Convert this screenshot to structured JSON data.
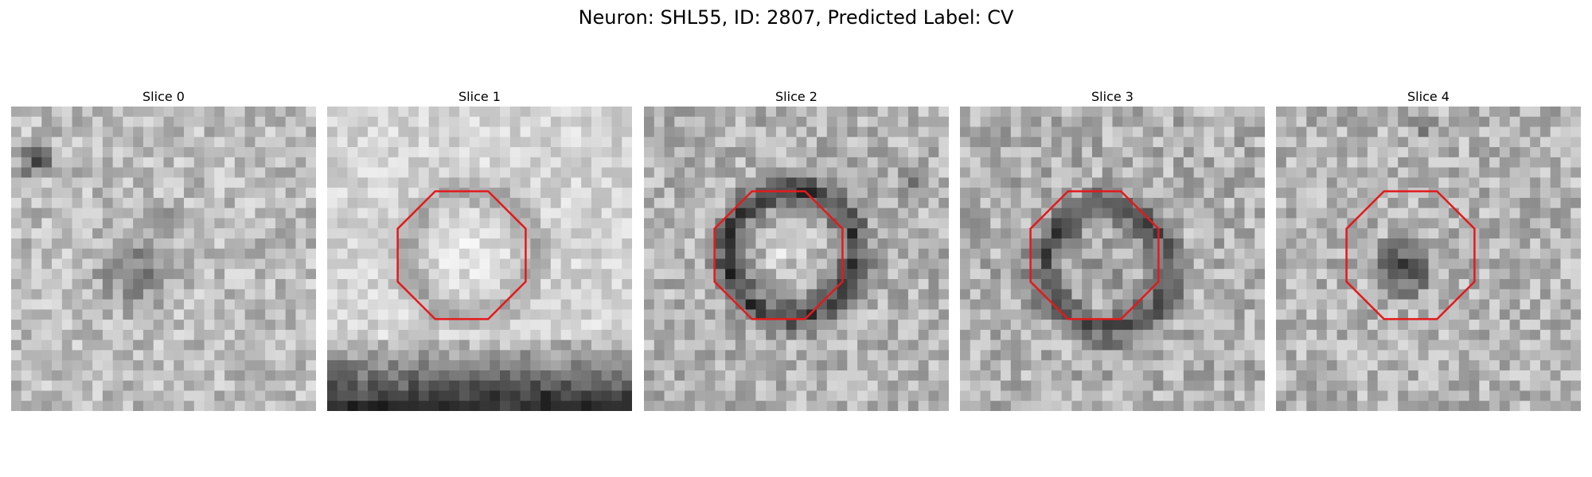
{
  "figure": {
    "title": "Neuron: SHL55, ID: 2807, Predicted Label: CV",
    "overlay_shape": "octagon",
    "overlay_color": "#e31a1c",
    "colormap": "grayscale"
  },
  "slices": [
    {
      "title": "Slice 0",
      "overlay": false
    },
    {
      "title": "Slice 1",
      "overlay": true
    },
    {
      "title": "Slice 2",
      "overlay": true
    },
    {
      "title": "Slice 3",
      "overlay": true
    },
    {
      "title": "Slice 4",
      "overlay": true
    }
  ]
}
